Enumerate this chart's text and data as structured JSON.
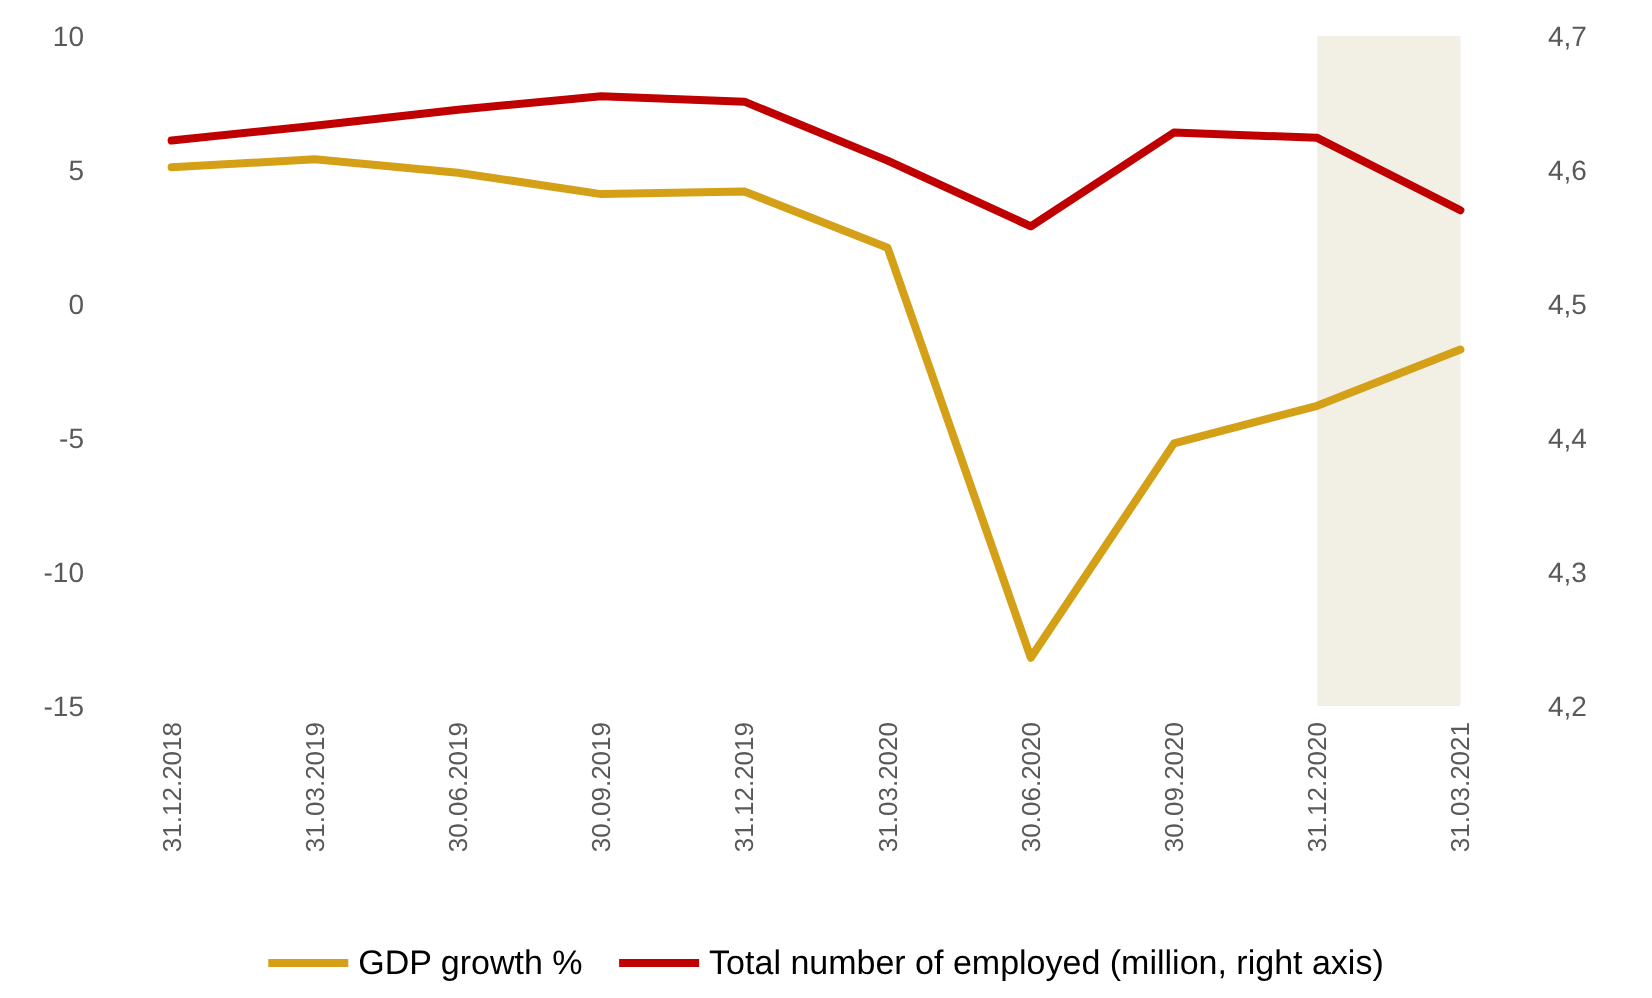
{
  "chart_data": {
    "type": "line",
    "categories": [
      "31.12.2018",
      "31.03.2019",
      "30.06.2019",
      "30.09.2019",
      "31.12.2019",
      "31.03.2020",
      "30.06.2020",
      "30.09.2020",
      "31.12.2020",
      "31.03.2021"
    ],
    "series": [
      {
        "name": "GDP growth %",
        "color": "#d4a017",
        "values": [
          5.1,
          5.4,
          4.9,
          4.1,
          4.2,
          2.1,
          -13.2,
          -5.2,
          -3.8,
          -1.7
        ]
      },
      {
        "name": "Total number of employed (million, right axis)",
        "color": "#c00000",
        "axis": "y2",
        "values": [
          4.622,
          4.633,
          4.645,
          4.655,
          4.651,
          4.607,
          4.558,
          4.628,
          4.624,
          4.57
        ]
      }
    ],
    "ylim": [
      -15,
      10
    ],
    "yticks": [
      -15,
      -10,
      -5,
      0,
      5,
      10
    ],
    "y2lim": [
      4.2,
      4.7
    ],
    "y2ticks": [
      {
        "value": 4.2,
        "label": "4,2"
      },
      {
        "value": 4.3,
        "label": "4,3"
      },
      {
        "value": 4.4,
        "label": "4,4"
      },
      {
        "value": 4.5,
        "label": "4,5"
      },
      {
        "value": 4.6,
        "label": "4,6"
      },
      {
        "value": 4.7,
        "label": "4,7"
      }
    ],
    "bands": [
      {
        "axis": "x",
        "from": "31.12.2020",
        "to": "31.03.2021",
        "color": "#f2efe4"
      }
    ],
    "grid": false,
    "legend": "bottom",
    "marker": "none",
    "line_style": "solid"
  }
}
